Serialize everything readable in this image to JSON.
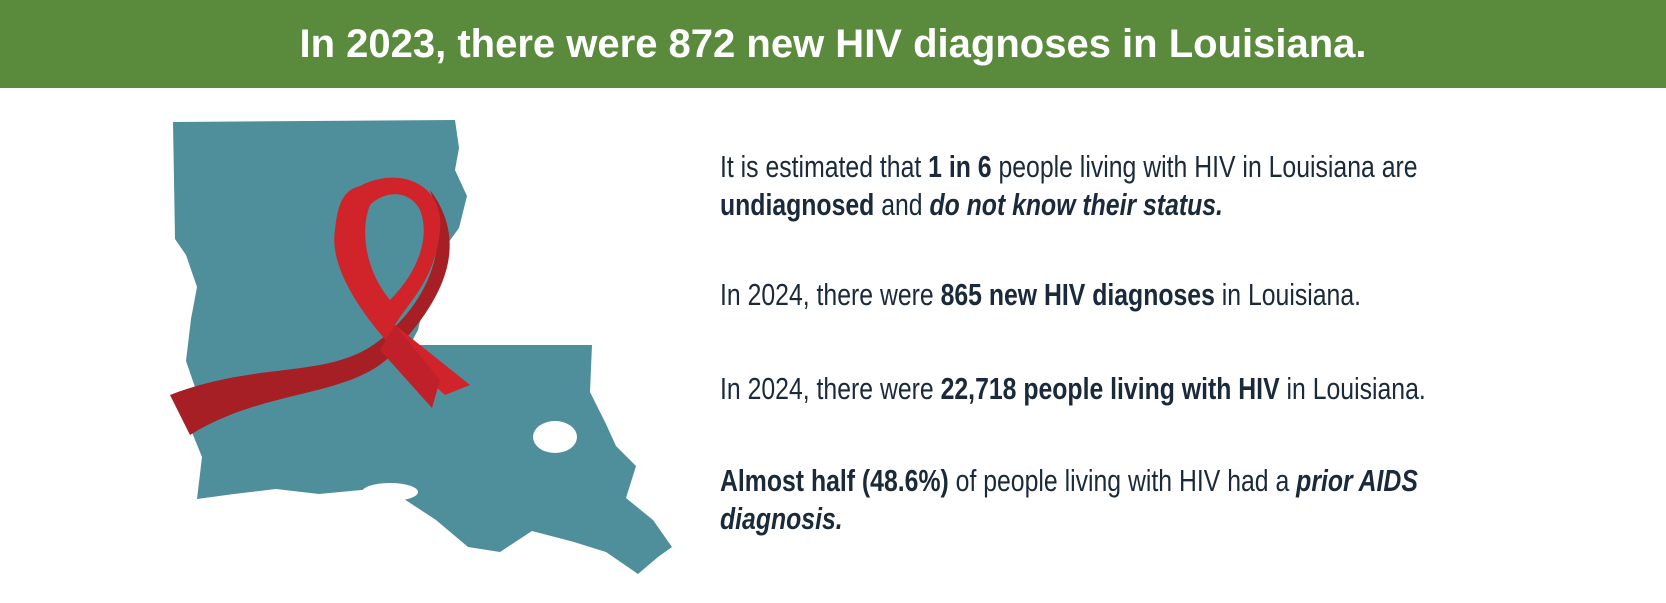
{
  "header": {
    "title": "In 2023, there were 872 new HIV diagnoses in Louisiana."
  },
  "paragraphs": [
    [
      "It is estimated that ",
      "1 in 6",
      " people living with HIV in Louisiana are ",
      "undiagnosed",
      " and ",
      "do not know their status."
    ],
    [
      "In 2024, there were ",
      "865 new HIV diagnoses",
      " in Louisiana."
    ],
    [
      "In 2024, there were ",
      "22,718 people living with HIV",
      " in Louisiana."
    ],
    [
      "Almost half (48.6%)",
      " of people living with HIV had a ",
      "prior AIDS diagnosis."
    ]
  ]
}
